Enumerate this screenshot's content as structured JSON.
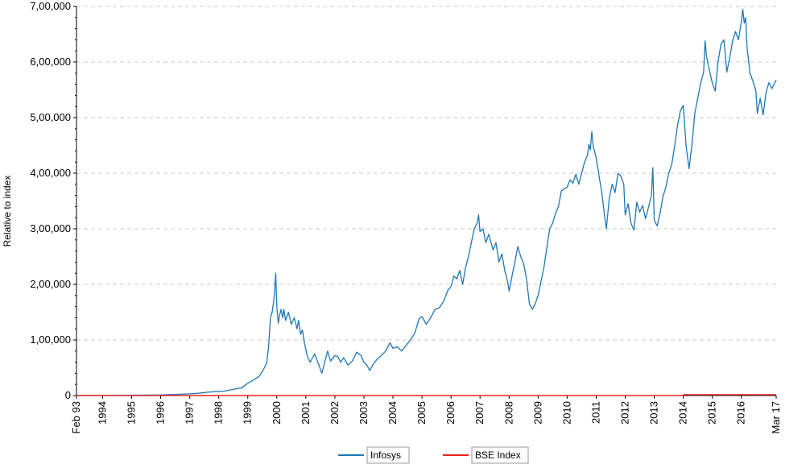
{
  "chart_data": {
    "type": "line",
    "ylabel": "Relative to index",
    "xlabel": "",
    "ylim": [
      0,
      700000
    ],
    "yticks": [
      {
        "value": 0,
        "label": "0"
      },
      {
        "value": 100000,
        "label": "1,00,000"
      },
      {
        "value": 200000,
        "label": "2,00,000"
      },
      {
        "value": 300000,
        "label": "3,00,000"
      },
      {
        "value": 400000,
        "label": "4,00,000"
      },
      {
        "value": 500000,
        "label": "5,00,000"
      },
      {
        "value": 600000,
        "label": "6,00,000"
      },
      {
        "value": 700000,
        "label": "7,00,000"
      }
    ],
    "xrange": [
      1993.1,
      2017.2
    ],
    "xticks": [
      {
        "value": 1993.1,
        "label": "Feb 93"
      },
      {
        "value": 1994.0,
        "label": "1994"
      },
      {
        "value": 1995.0,
        "label": "1995"
      },
      {
        "value": 1996.0,
        "label": "1996"
      },
      {
        "value": 1997.0,
        "label": "1997"
      },
      {
        "value": 1998.0,
        "label": "1998"
      },
      {
        "value": 1999.0,
        "label": "1999"
      },
      {
        "value": 2000.0,
        "label": "2000"
      },
      {
        "value": 2001.0,
        "label": "2001"
      },
      {
        "value": 2002.0,
        "label": "2002"
      },
      {
        "value": 2003.0,
        "label": "2003"
      },
      {
        "value": 2004.0,
        "label": "2004"
      },
      {
        "value": 2005.0,
        "label": "2005"
      },
      {
        "value": 2006.0,
        "label": "2006"
      },
      {
        "value": 2007.0,
        "label": "2007"
      },
      {
        "value": 2008.0,
        "label": "2008"
      },
      {
        "value": 2009.0,
        "label": "2009"
      },
      {
        "value": 2010.0,
        "label": "2010"
      },
      {
        "value": 2011.0,
        "label": "2011"
      },
      {
        "value": 2012.0,
        "label": "2012"
      },
      {
        "value": 2013.0,
        "label": "2013"
      },
      {
        "value": 2014.0,
        "label": "2014"
      },
      {
        "value": 2015.0,
        "label": "2015"
      },
      {
        "value": 2016.0,
        "label": "2016"
      },
      {
        "value": 2017.2,
        "label": "Mar 17"
      }
    ],
    "grid": true,
    "legend_position": "bottom",
    "series": [
      {
        "name": "Infosys",
        "color": "#1f77b4",
        "points": [
          [
            1993.1,
            0
          ],
          [
            1994.0,
            200
          ],
          [
            1995.0,
            500
          ],
          [
            1996.0,
            1000
          ],
          [
            1996.5,
            2000
          ],
          [
            1997.0,
            3000
          ],
          [
            1997.3,
            4000
          ],
          [
            1997.6,
            6000
          ],
          [
            1997.9,
            7000
          ],
          [
            1998.2,
            8000
          ],
          [
            1998.5,
            11000
          ],
          [
            1998.8,
            14000
          ],
          [
            1999.0,
            22000
          ],
          [
            1999.2,
            28000
          ],
          [
            1999.4,
            35000
          ],
          [
            1999.55,
            48000
          ],
          [
            1999.65,
            58000
          ],
          [
            1999.72,
            90000
          ],
          [
            1999.78,
            140000
          ],
          [
            1999.84,
            150000
          ],
          [
            1999.88,
            165000
          ],
          [
            1999.92,
            185000
          ],
          [
            1999.96,
            220000
          ],
          [
            2000.0,
            160000
          ],
          [
            2000.05,
            130000
          ],
          [
            2000.1,
            145000
          ],
          [
            2000.15,
            155000
          ],
          [
            2000.2,
            140000
          ],
          [
            2000.25,
            155000
          ],
          [
            2000.3,
            135000
          ],
          [
            2000.4,
            150000
          ],
          [
            2000.5,
            128000
          ],
          [
            2000.6,
            140000
          ],
          [
            2000.7,
            120000
          ],
          [
            2000.75,
            135000
          ],
          [
            2000.82,
            110000
          ],
          [
            2000.88,
            118000
          ],
          [
            2000.95,
            95000
          ],
          [
            2001.05,
            70000
          ],
          [
            2001.15,
            60000
          ],
          [
            2001.3,
            75000
          ],
          [
            2001.45,
            55000
          ],
          [
            2001.55,
            40000
          ],
          [
            2001.65,
            60000
          ],
          [
            2001.75,
            80000
          ],
          [
            2001.85,
            62000
          ],
          [
            2002.0,
            72000
          ],
          [
            2002.1,
            70000
          ],
          [
            2002.2,
            60000
          ],
          [
            2002.3,
            68000
          ],
          [
            2002.45,
            55000
          ],
          [
            2002.6,
            62000
          ],
          [
            2002.75,
            78000
          ],
          [
            2002.9,
            72000
          ],
          [
            2003.0,
            60000
          ],
          [
            2003.1,
            55000
          ],
          [
            2003.2,
            45000
          ],
          [
            2003.3,
            55000
          ],
          [
            2003.45,
            65000
          ],
          [
            2003.6,
            72000
          ],
          [
            2003.75,
            80000
          ],
          [
            2003.9,
            95000
          ],
          [
            2004.0,
            85000
          ],
          [
            2004.15,
            88000
          ],
          [
            2004.3,
            80000
          ],
          [
            2004.45,
            90000
          ],
          [
            2004.6,
            100000
          ],
          [
            2004.75,
            112000
          ],
          [
            2004.9,
            138000
          ],
          [
            2005.0,
            142000
          ],
          [
            2005.15,
            128000
          ],
          [
            2005.3,
            140000
          ],
          [
            2005.45,
            155000
          ],
          [
            2005.6,
            158000
          ],
          [
            2005.75,
            170000
          ],
          [
            2005.9,
            190000
          ],
          [
            2006.0,
            196000
          ],
          [
            2006.1,
            215000
          ],
          [
            2006.2,
            210000
          ],
          [
            2006.3,
            225000
          ],
          [
            2006.4,
            200000
          ],
          [
            2006.5,
            230000
          ],
          [
            2006.6,
            250000
          ],
          [
            2006.7,
            275000
          ],
          [
            2006.8,
            300000
          ],
          [
            2006.9,
            310000
          ],
          [
            2006.95,
            325000
          ],
          [
            2007.0,
            295000
          ],
          [
            2007.1,
            300000
          ],
          [
            2007.2,
            275000
          ],
          [
            2007.3,
            290000
          ],
          [
            2007.45,
            262000
          ],
          [
            2007.55,
            275000
          ],
          [
            2007.65,
            240000
          ],
          [
            2007.75,
            255000
          ],
          [
            2007.85,
            225000
          ],
          [
            2007.95,
            205000
          ],
          [
            2008.0,
            188000
          ],
          [
            2008.1,
            215000
          ],
          [
            2008.2,
            240000
          ],
          [
            2008.3,
            268000
          ],
          [
            2008.4,
            250000
          ],
          [
            2008.5,
            238000
          ],
          [
            2008.6,
            210000
          ],
          [
            2008.7,
            165000
          ],
          [
            2008.8,
            155000
          ],
          [
            2008.9,
            165000
          ],
          [
            2009.0,
            180000
          ],
          [
            2009.1,
            205000
          ],
          [
            2009.2,
            230000
          ],
          [
            2009.3,
            265000
          ],
          [
            2009.4,
            300000
          ],
          [
            2009.5,
            310000
          ],
          [
            2009.6,
            328000
          ],
          [
            2009.7,
            340000
          ],
          [
            2009.8,
            368000
          ],
          [
            2009.9,
            372000
          ],
          [
            2010.0,
            375000
          ],
          [
            2010.1,
            388000
          ],
          [
            2010.2,
            382000
          ],
          [
            2010.3,
            398000
          ],
          [
            2010.4,
            380000
          ],
          [
            2010.5,
            400000
          ],
          [
            2010.6,
            420000
          ],
          [
            2010.7,
            432000
          ],
          [
            2010.75,
            452000
          ],
          [
            2010.8,
            442000
          ],
          [
            2010.85,
            475000
          ],
          [
            2010.9,
            448000
          ],
          [
            2011.0,
            428000
          ],
          [
            2011.1,
            395000
          ],
          [
            2011.2,
            362000
          ],
          [
            2011.3,
            318000
          ],
          [
            2011.35,
            300000
          ],
          [
            2011.45,
            355000
          ],
          [
            2011.55,
            380000
          ],
          [
            2011.65,
            365000
          ],
          [
            2011.75,
            400000
          ],
          [
            2011.85,
            395000
          ],
          [
            2011.95,
            380000
          ],
          [
            2012.0,
            325000
          ],
          [
            2012.1,
            345000
          ],
          [
            2012.2,
            310000
          ],
          [
            2012.3,
            298000
          ],
          [
            2012.4,
            348000
          ],
          [
            2012.5,
            330000
          ],
          [
            2012.6,
            342000
          ],
          [
            2012.7,
            318000
          ],
          [
            2012.8,
            338000
          ],
          [
            2012.9,
            360000
          ],
          [
            2012.95,
            410000
          ],
          [
            2013.0,
            315000
          ],
          [
            2013.1,
            305000
          ],
          [
            2013.2,
            328000
          ],
          [
            2013.3,
            358000
          ],
          [
            2013.4,
            375000
          ],
          [
            2013.5,
            400000
          ],
          [
            2013.6,
            415000
          ],
          [
            2013.7,
            448000
          ],
          [
            2013.8,
            485000
          ],
          [
            2013.9,
            512000
          ],
          [
            2014.0,
            522000
          ],
          [
            2014.1,
            448000
          ],
          [
            2014.2,
            408000
          ],
          [
            2014.3,
            452000
          ],
          [
            2014.4,
            508000
          ],
          [
            2014.5,
            535000
          ],
          [
            2014.6,
            562000
          ],
          [
            2014.7,
            582000
          ],
          [
            2014.75,
            638000
          ],
          [
            2014.8,
            610000
          ],
          [
            2014.9,
            585000
          ],
          [
            2015.0,
            562000
          ],
          [
            2015.1,
            548000
          ],
          [
            2015.2,
            602000
          ],
          [
            2015.3,
            632000
          ],
          [
            2015.4,
            640000
          ],
          [
            2015.5,
            582000
          ],
          [
            2015.6,
            608000
          ],
          [
            2015.7,
            638000
          ],
          [
            2015.8,
            655000
          ],
          [
            2015.9,
            640000
          ],
          [
            2016.0,
            672000
          ],
          [
            2016.05,
            695000
          ],
          [
            2016.1,
            670000
          ],
          [
            2016.15,
            680000
          ],
          [
            2016.2,
            625000
          ],
          [
            2016.3,
            580000
          ],
          [
            2016.4,
            565000
          ],
          [
            2016.5,
            548000
          ],
          [
            2016.55,
            508000
          ],
          [
            2016.65,
            535000
          ],
          [
            2016.75,
            505000
          ],
          [
            2016.85,
            545000
          ],
          [
            2016.95,
            563000
          ],
          [
            2017.05,
            552000
          ],
          [
            2017.2,
            568000
          ]
        ]
      },
      {
        "name": "BSE Index",
        "color": "#e8201e",
        "points": [
          [
            1993.1,
            0
          ],
          [
            2014.0,
            0
          ],
          [
            2014.01,
            1500
          ],
          [
            2017.2,
            1500
          ]
        ]
      }
    ]
  }
}
